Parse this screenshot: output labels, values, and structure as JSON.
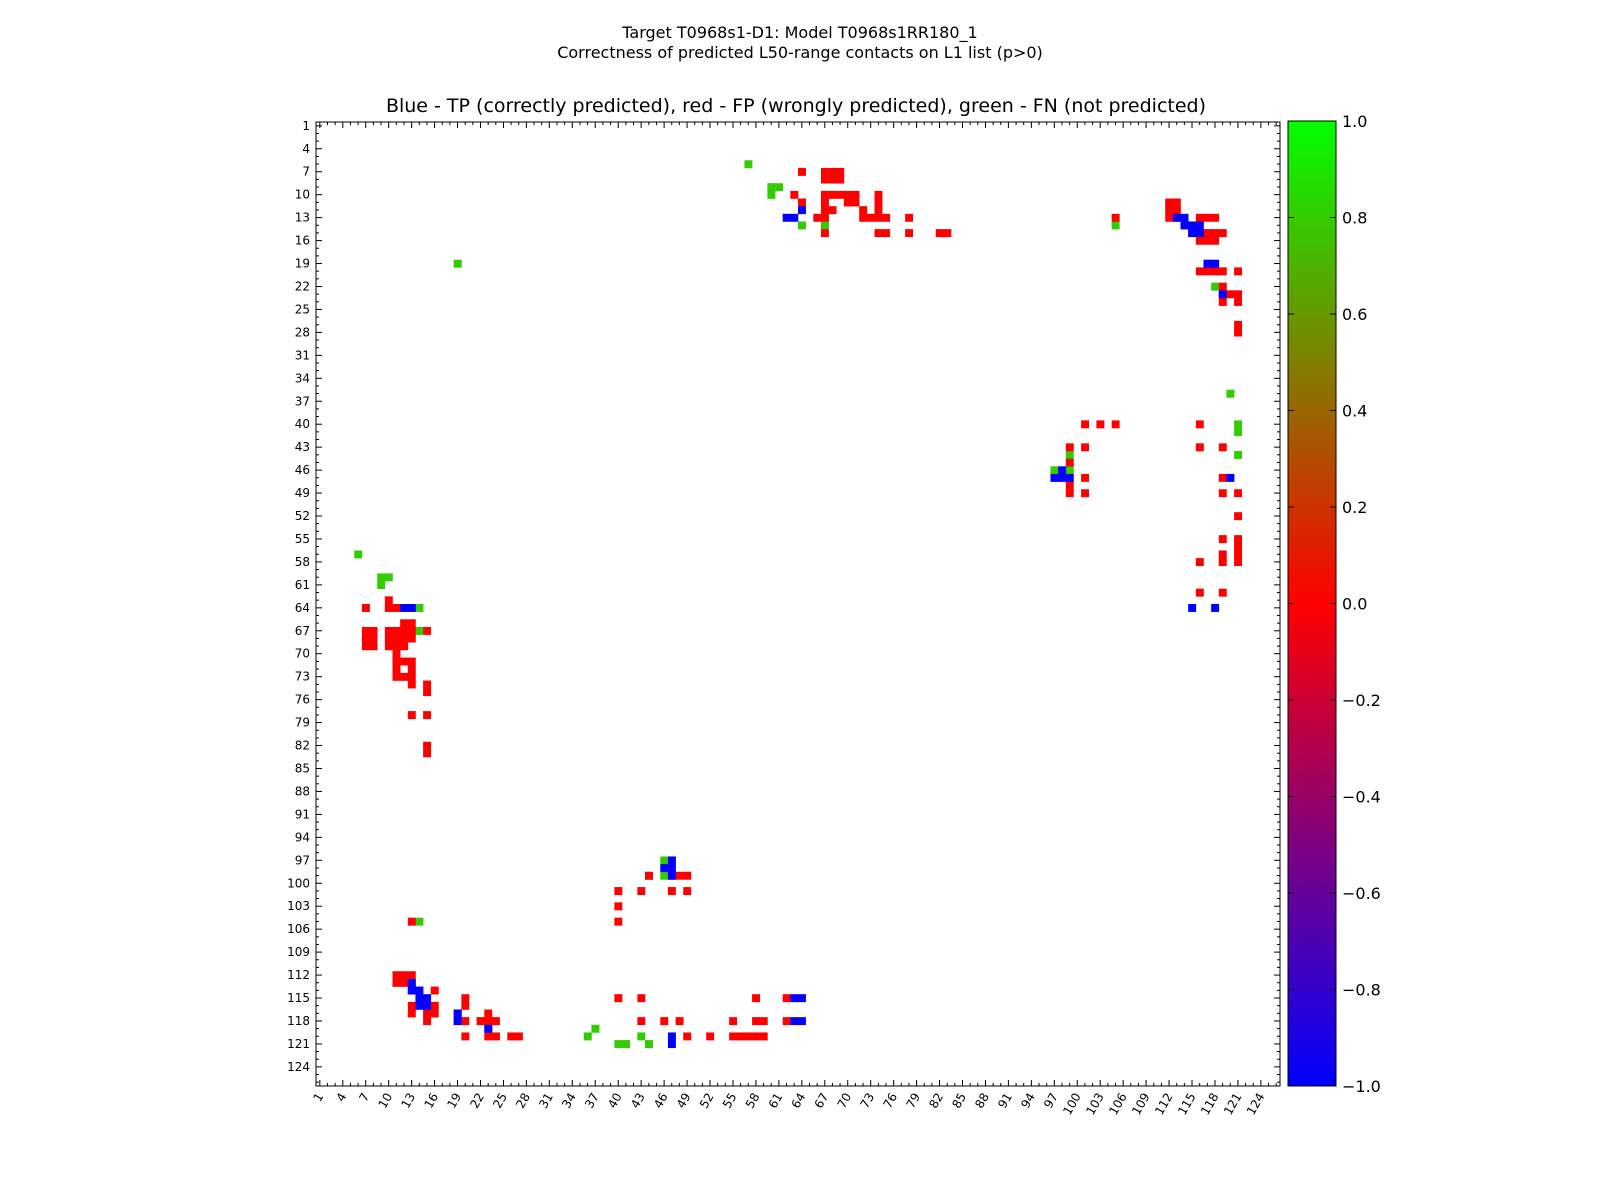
{
  "chart_data": {
    "type": "heatmap",
    "suptitle_line1": "Target T0968s1-D1: Model T0968s1RR180_1",
    "suptitle_line2": "Correctness of predicted L50-range contacts on L1 list (p>0)",
    "title": "Blue - TP (correctly predicted), red - FP (wrongly predicted), green - FN (not predicted)",
    "xlabel": "",
    "ylabel": "",
    "axis_range": [
      1,
      126
    ],
    "x_ticks": [
      "1",
      "4",
      "7",
      "10",
      "13",
      "16",
      "19",
      "22",
      "25",
      "28",
      "31",
      "34",
      "37",
      "40",
      "43",
      "46",
      "49",
      "52",
      "55",
      "58",
      "61",
      "64",
      "67",
      "70",
      "73",
      "76",
      "79",
      "82",
      "85",
      "88",
      "91",
      "94",
      "97",
      "100",
      "103",
      "106",
      "109",
      "112",
      "115",
      "118",
      "121",
      "124"
    ],
    "y_ticks": [
      "1",
      "4",
      "7",
      "10",
      "13",
      "16",
      "19",
      "22",
      "25",
      "28",
      "31",
      "34",
      "37",
      "40",
      "43",
      "46",
      "49",
      "52",
      "55",
      "58",
      "61",
      "64",
      "67",
      "70",
      "73",
      "76",
      "79",
      "82",
      "85",
      "88",
      "91",
      "94",
      "97",
      "100",
      "103",
      "106",
      "109",
      "112",
      "115",
      "118",
      "121",
      "124"
    ],
    "colorbar": {
      "min": -1.0,
      "max": 1.0,
      "ticks": [
        "1.0",
        "0.8",
        "0.6",
        "0.4",
        "0.2",
        "0.0",
        "−0.2",
        "−0.4",
        "−0.6",
        "−0.8",
        "−1.0"
      ],
      "colors": [
        "#0000ff",
        "#ff0000",
        "#00ff00"
      ]
    },
    "legend": {
      "TP": "#0000ff",
      "FP": "#ff0000",
      "FN": "#33cc00"
    },
    "cells": {
      "TP": [
        [
          64,
          12
        ],
        [
          63,
          13
        ],
        [
          62,
          13
        ],
        [
          13,
          64
        ],
        [
          12,
          64
        ],
        [
          113,
          13
        ],
        [
          114,
          13
        ],
        [
          114,
          14
        ],
        [
          115,
          14
        ],
        [
          116,
          14
        ],
        [
          115,
          15
        ],
        [
          116,
          15
        ],
        [
          117,
          19
        ],
        [
          118,
          19
        ],
        [
          119,
          23
        ],
        [
          98,
          46
        ],
        [
          97,
          47
        ],
        [
          98,
          47
        ],
        [
          99,
          47
        ],
        [
          120,
          47
        ],
        [
          115,
          64
        ],
        [
          118,
          64
        ],
        [
          13,
          113
        ],
        [
          13,
          114
        ],
        [
          14,
          114
        ],
        [
          14,
          115
        ],
        [
          14,
          116
        ],
        [
          15,
          115
        ],
        [
          15,
          116
        ],
        [
          19,
          117
        ],
        [
          19,
          118
        ],
        [
          23,
          119
        ],
        [
          46,
          98
        ],
        [
          47,
          97
        ],
        [
          47,
          98
        ],
        [
          47,
          99
        ],
        [
          47,
          120
        ],
        [
          64,
          115
        ],
        [
          64,
          118
        ],
        [
          64,
          115
        ],
        [
          64,
          118
        ],
        [
          19,
          117
        ],
        [
          63,
          115
        ],
        [
          63,
          118
        ],
        [
          47,
          121
        ]
      ],
      "FN": [
        [
          57,
          6
        ],
        [
          60,
          9
        ],
        [
          61,
          9
        ],
        [
          60,
          10
        ],
        [
          64,
          14
        ],
        [
          67,
          14
        ],
        [
          105,
          14
        ],
        [
          117,
          19
        ],
        [
          118,
          22
        ],
        [
          120,
          36
        ],
        [
          121,
          40
        ],
        [
          121,
          41
        ],
        [
          121,
          44
        ],
        [
          99,
          44
        ],
        [
          97,
          46
        ],
        [
          99,
          46
        ],
        [
          6,
          57
        ],
        [
          9,
          60
        ],
        [
          9,
          61
        ],
        [
          10,
          60
        ],
        [
          14,
          64
        ],
        [
          14,
          67
        ],
        [
          14,
          105
        ],
        [
          19,
          117
        ],
        [
          22,
          118
        ],
        [
          36,
          120
        ],
        [
          40,
          121
        ],
        [
          41,
          121
        ],
        [
          44,
          121
        ],
        [
          44,
          99
        ],
        [
          46,
          97
        ],
        [
          46,
          99
        ],
        [
          19,
          19
        ],
        [
          22,
          118
        ],
        [
          37,
          119
        ],
        [
          40,
          121
        ],
        [
          43,
          120
        ]
      ],
      "FP": [
        [
          64,
          7
        ],
        [
          67,
          7
        ],
        [
          68,
          7
        ],
        [
          69,
          7
        ],
        [
          67,
          8
        ],
        [
          68,
          8
        ],
        [
          69,
          8
        ],
        [
          63,
          10
        ],
        [
          67,
          10
        ],
        [
          68,
          10
        ],
        [
          69,
          10
        ],
        [
          70,
          10
        ],
        [
          71,
          10
        ],
        [
          74,
          10
        ],
        [
          64,
          11
        ],
        [
          67,
          11
        ],
        [
          70,
          11
        ],
        [
          71,
          11
        ],
        [
          74,
          11
        ],
        [
          67,
          12
        ],
        [
          68,
          12
        ],
        [
          72,
          12
        ],
        [
          74,
          12
        ],
        [
          66,
          13
        ],
        [
          67,
          13
        ],
        [
          72,
          13
        ],
        [
          73,
          13
        ],
        [
          74,
          13
        ],
        [
          75,
          13
        ],
        [
          78,
          13
        ],
        [
          105,
          13
        ],
        [
          67,
          15
        ],
        [
          74,
          15
        ],
        [
          75,
          15
        ],
        [
          78,
          15
        ],
        [
          82,
          15
        ],
        [
          83,
          15
        ],
        [
          112,
          11
        ],
        [
          113,
          11
        ],
        [
          112,
          12
        ],
        [
          113,
          12
        ],
        [
          112,
          13
        ],
        [
          113,
          13
        ],
        [
          116,
          13
        ],
        [
          117,
          13
        ],
        [
          118,
          13
        ],
        [
          115,
          15
        ],
        [
          117,
          15
        ],
        [
          118,
          15
        ],
        [
          119,
          15
        ],
        [
          116,
          16
        ],
        [
          117,
          16
        ],
        [
          118,
          16
        ],
        [
          119,
          20
        ],
        [
          116,
          20
        ],
        [
          117,
          20
        ],
        [
          118,
          20
        ],
        [
          121,
          20
        ],
        [
          119,
          22
        ],
        [
          119,
          23
        ],
        [
          120,
          23
        ],
        [
          121,
          23
        ],
        [
          119,
          24
        ],
        [
          121,
          24
        ],
        [
          121,
          27
        ],
        [
          121,
          28
        ],
        [
          101,
          40
        ],
        [
          103,
          40
        ],
        [
          105,
          40
        ],
        [
          116,
          40
        ],
        [
          99,
          43
        ],
        [
          101,
          43
        ],
        [
          116,
          43
        ],
        [
          119,
          43
        ],
        [
          99,
          45
        ],
        [
          101,
          47
        ],
        [
          119,
          47
        ],
        [
          99,
          48
        ],
        [
          99,
          49
        ],
        [
          101,
          49
        ],
        [
          119,
          49
        ],
        [
          121,
          49
        ],
        [
          121,
          52
        ],
        [
          119,
          55
        ],
        [
          121,
          55
        ],
        [
          121,
          56
        ],
        [
          116,
          58
        ],
        [
          119,
          58
        ],
        [
          121,
          58
        ],
        [
          119,
          57
        ],
        [
          121,
          57
        ],
        [
          116,
          62
        ],
        [
          119,
          62
        ],
        [
          7,
          64
        ],
        [
          10,
          63
        ],
        [
          11,
          64
        ],
        [
          10,
          64
        ],
        [
          12,
          66
        ],
        [
          13,
          66
        ],
        [
          7,
          67
        ],
        [
          8,
          67
        ],
        [
          10,
          67
        ],
        [
          11,
          67
        ],
        [
          12,
          67
        ],
        [
          13,
          67
        ],
        [
          15,
          67
        ],
        [
          7,
          68
        ],
        [
          8,
          68
        ],
        [
          10,
          68
        ],
        [
          11,
          68
        ],
        [
          12,
          68
        ],
        [
          13,
          68
        ],
        [
          7,
          69
        ],
        [
          8,
          69
        ],
        [
          10,
          69
        ],
        [
          11,
          69
        ],
        [
          12,
          69
        ],
        [
          11,
          70
        ],
        [
          11,
          71
        ],
        [
          12,
          71
        ],
        [
          13,
          71
        ],
        [
          11,
          72
        ],
        [
          13,
          72
        ],
        [
          11,
          73
        ],
        [
          12,
          73
        ],
        [
          13,
          73
        ],
        [
          13,
          74
        ],
        [
          15,
          74
        ],
        [
          15,
          75
        ],
        [
          13,
          78
        ],
        [
          15,
          78
        ],
        [
          15,
          82
        ],
        [
          15,
          83
        ],
        [
          13,
          105
        ],
        [
          11,
          112
        ],
        [
          12,
          112
        ],
        [
          13,
          112
        ],
        [
          11,
          113
        ],
        [
          12,
          113
        ],
        [
          13,
          113
        ],
        [
          13,
          114
        ],
        [
          16,
          114
        ],
        [
          20,
          115
        ],
        [
          20,
          116
        ],
        [
          13,
          116
        ],
        [
          15,
          116
        ],
        [
          16,
          116
        ],
        [
          13,
          117
        ],
        [
          15,
          117
        ],
        [
          16,
          117
        ],
        [
          19,
          117
        ],
        [
          23,
          117
        ],
        [
          19,
          118
        ],
        [
          20,
          118
        ],
        [
          22,
          118
        ],
        [
          23,
          118
        ],
        [
          24,
          118
        ],
        [
          15,
          118
        ],
        [
          23,
          119
        ],
        [
          20,
          120
        ],
        [
          23,
          120
        ],
        [
          24,
          120
        ],
        [
          26,
          120
        ],
        [
          27,
          120
        ],
        [
          40,
          101
        ],
        [
          40,
          103
        ],
        [
          40,
          105
        ],
        [
          40,
          115
        ],
        [
          43,
          101
        ],
        [
          43,
          115
        ],
        [
          44,
          99
        ],
        [
          43,
          118
        ],
        [
          47,
          99
        ],
        [
          49,
          99
        ],
        [
          48,
          99
        ],
        [
          47,
          101
        ],
        [
          49,
          101
        ],
        [
          46,
          118
        ],
        [
          48,
          118
        ],
        [
          49,
          120
        ],
        [
          52,
          120
        ],
        [
          55,
          118
        ],
        [
          55,
          120
        ],
        [
          56,
          120
        ],
        [
          58,
          115
        ],
        [
          58,
          118
        ],
        [
          59,
          118
        ],
        [
          57,
          120
        ],
        [
          58,
          120
        ],
        [
          59,
          120
        ],
        [
          62,
          115
        ],
        [
          62,
          118
        ]
      ]
    }
  }
}
